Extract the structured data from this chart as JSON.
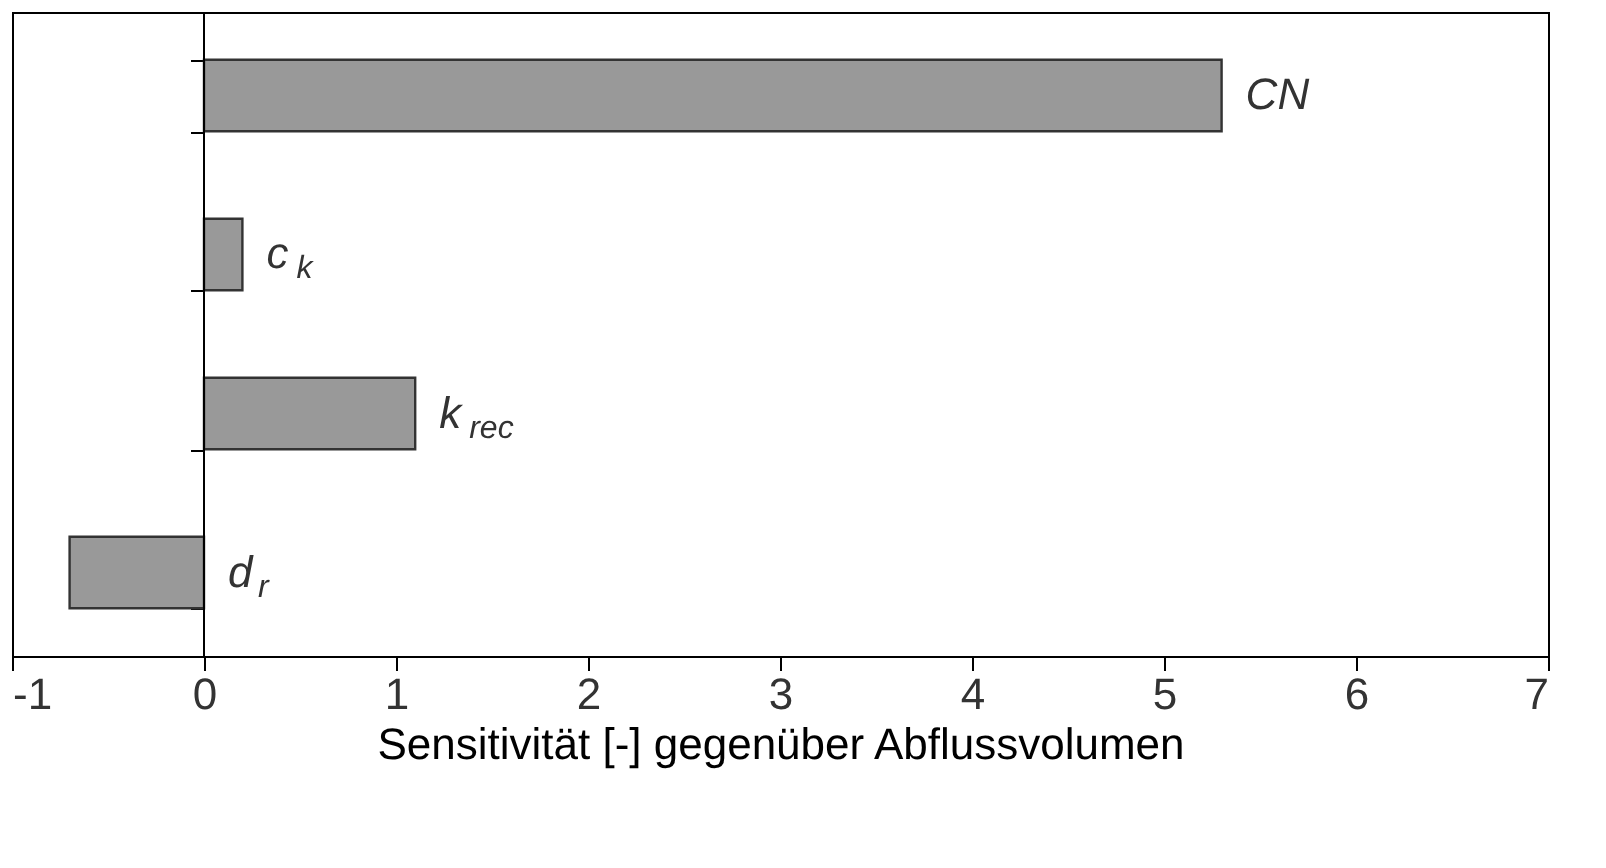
{
  "chart_data": {
    "type": "bar",
    "orientation": "horizontal",
    "categories": [
      "CN",
      "c$_{k}$",
      "k$_{rec}$",
      "d$_{r}$"
    ],
    "values": [
      5.3,
      0.2,
      1.1,
      -0.7
    ],
    "color": "#999999",
    "xlim": [
      -1,
      7
    ],
    "xticks": [
      -1,
      0,
      1,
      2,
      3,
      4,
      5,
      6,
      7
    ],
    "xlabel": "Sensitivität [-] gegenüber Abflussvolumen",
    "tick_labels": "x",
    "grid": false,
    "ref_lines": [
      {
        "axis": "x",
        "value": 0,
        "color": "#000000"
      }
    ]
  }
}
